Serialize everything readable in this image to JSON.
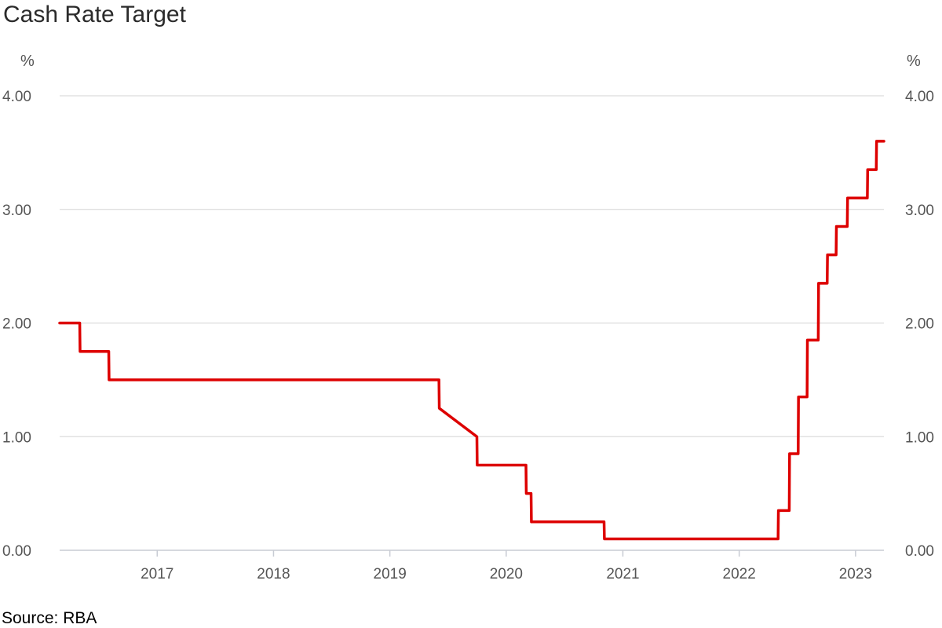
{
  "chart_data": {
    "type": "line",
    "title": "Cash Rate Target",
    "source": "Source: RBA",
    "yunit_left": "%",
    "yunit_right": "%",
    "ylim": [
      0,
      4
    ],
    "yticks": [
      "0.00",
      "1.00",
      "2.00",
      "3.00",
      "4.00"
    ],
    "xlim": [
      "2016-03-01",
      "2023-03-31"
    ],
    "xticks": [
      "2017",
      "2018",
      "2019",
      "2020",
      "2021",
      "2022",
      "2023"
    ],
    "grid": true,
    "line_color": "#dd0000",
    "series": [
      {
        "x": [
          "2016-03-01",
          "2016-05-03",
          "2016-05-04",
          "2016-08-02",
          "2016-08-03",
          "2019-06-04",
          "2019-06-05",
          "2019-10-01",
          "2019-10-02",
          "2020-03-03",
          "2020-03-04",
          "2020-03-19",
          "2020-03-20",
          "2020-11-03",
          "2020-11-04",
          "2022-05-03",
          "2022-05-04",
          "2022-06-07",
          "2022-06-08",
          "2022-07-05",
          "2022-07-06",
          "2022-08-02",
          "2022-08-03",
          "2022-09-06",
          "2022-09-07",
          "2022-10-04",
          "2022-10-05",
          "2022-11-01",
          "2022-11-02",
          "2022-12-06",
          "2022-12-07",
          "2023-02-07",
          "2023-02-08",
          "2023-03-07",
          "2023-03-08",
          "2023-03-31"
        ],
        "y": [
          2.0,
          2.0,
          1.75,
          1.75,
          1.5,
          1.5,
          1.25,
          1.0,
          0.75,
          0.75,
          0.5,
          0.5,
          0.25,
          0.25,
          0.1,
          0.1,
          0.35,
          0.35,
          0.85,
          0.85,
          1.35,
          1.35,
          1.85,
          1.85,
          2.35,
          2.35,
          2.6,
          2.6,
          2.85,
          2.85,
          3.1,
          3.1,
          3.35,
          3.35,
          3.6,
          3.6
        ]
      }
    ]
  }
}
